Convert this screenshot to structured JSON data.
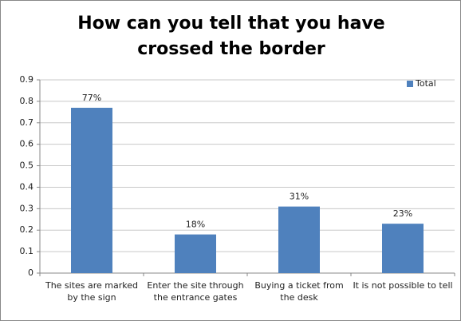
{
  "chart_data": {
    "type": "bar",
    "title": "How can you tell that you have crossed the border",
    "categories": [
      "The sites are marked by the sign",
      "Enter the site through the entrance gates",
      "Buying a ticket from the desk",
      "It is not possible to tell"
    ],
    "series": [
      {
        "name": "Total",
        "color": "#4f81bd",
        "values": [
          0.77,
          0.18,
          0.31,
          0.23
        ],
        "value_labels": [
          "77%",
          "18%",
          "31%",
          "23%"
        ]
      }
    ],
    "ylim": [
      0,
      0.9
    ],
    "yticks": [
      0,
      0.1,
      0.2,
      0.3,
      0.4,
      0.5,
      0.6,
      0.7,
      0.8,
      0.9
    ],
    "grid": true,
    "legend": "top-right"
  }
}
